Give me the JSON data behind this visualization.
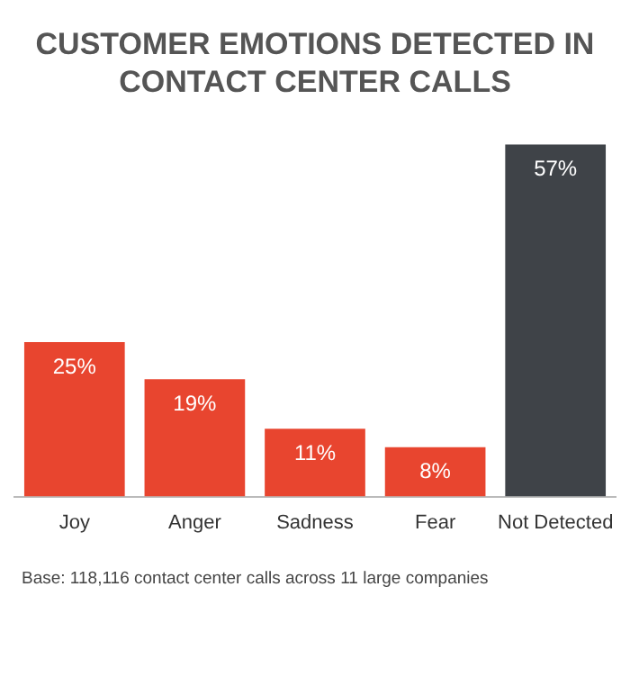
{
  "chart_data": {
    "type": "bar",
    "title": "CUSTOMER EMOTIONS DETECTED IN CONTACT CENTER CALLS",
    "categories": [
      "Joy",
      "Anger",
      "Sadness",
      "Fear",
      "Not Detected"
    ],
    "values": [
      25,
      19,
      11,
      8,
      57
    ],
    "colors": [
      "#e8452f",
      "#e8452f",
      "#e8452f",
      "#e8452f",
      "#3f4348"
    ],
    "value_labels": [
      "25%",
      "19%",
      "11%",
      "8%",
      "57%"
    ],
    "grid": false,
    "legend": false,
    "annotations": [
      "Base: 118,116 contact center calls across 11 large companies"
    ]
  }
}
